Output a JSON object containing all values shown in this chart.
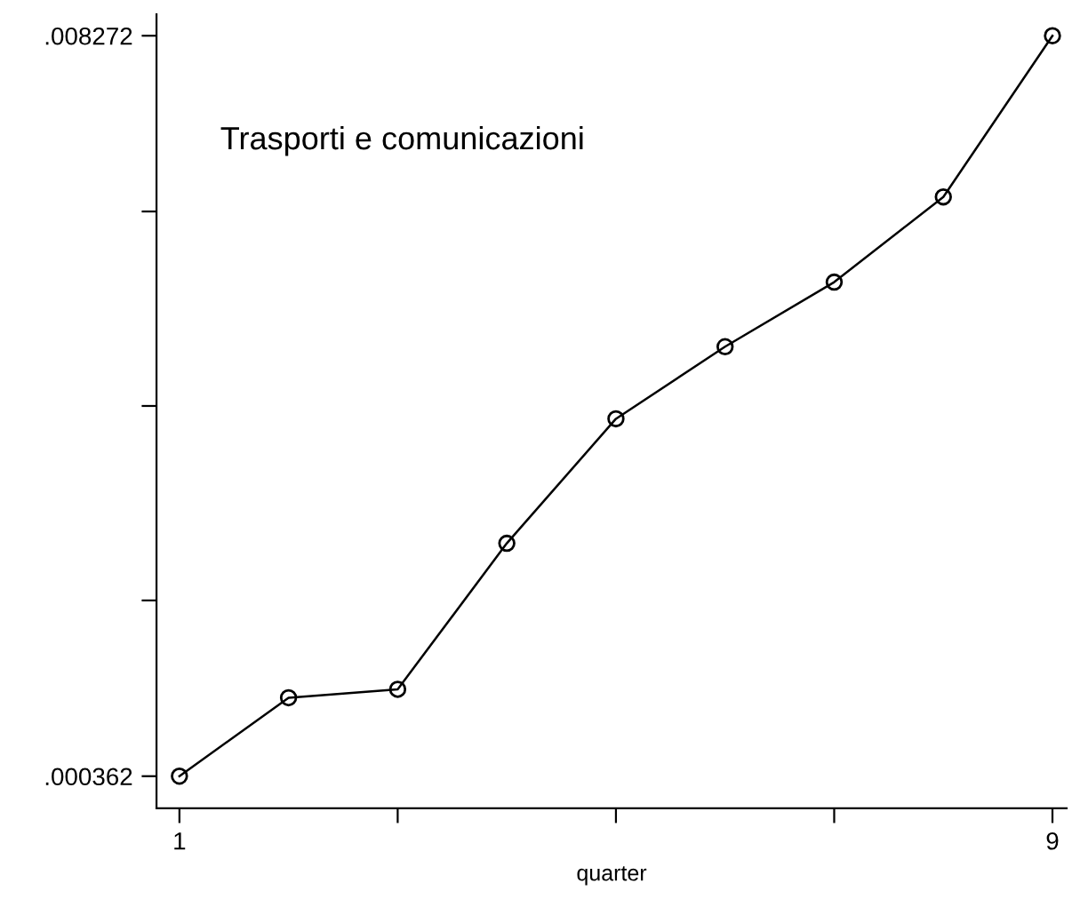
{
  "chart_data": {
    "type": "line",
    "xlabel": "quarter",
    "annotations": [
      "Trasporti e comunicazioni"
    ],
    "x": [
      1,
      2,
      3,
      4,
      5,
      6,
      7,
      8,
      9
    ],
    "series": [
      {
        "color": "#000000",
        "values": [
          0.000362,
          0.0012,
          0.00129,
          0.00285,
          0.00418,
          0.00495,
          0.00564,
          0.00655,
          0.008272
        ]
      }
    ],
    "marker": "circle",
    "line_style": "solid",
    "grid": false,
    "legend": false,
    "xlim": [
      0.79,
      9.13
    ],
    "ylim": [
      2e-05,
      0.0085
    ],
    "xticks": [
      1,
      {
        "value": 3,
        "label": null
      },
      {
        "value": 5,
        "label": null
      },
      {
        "value": 7,
        "label": null
      },
      9
    ],
    "yticks": [
      {
        "value": 0.000362,
        "label": ".000362"
      },
      {
        "value": 0.0022395,
        "label": null
      },
      {
        "value": 0.004317,
        "label": null
      },
      {
        "value": 0.0063945,
        "label": null
      },
      {
        "value": 0.008272,
        "label": ".008272"
      }
    ]
  }
}
